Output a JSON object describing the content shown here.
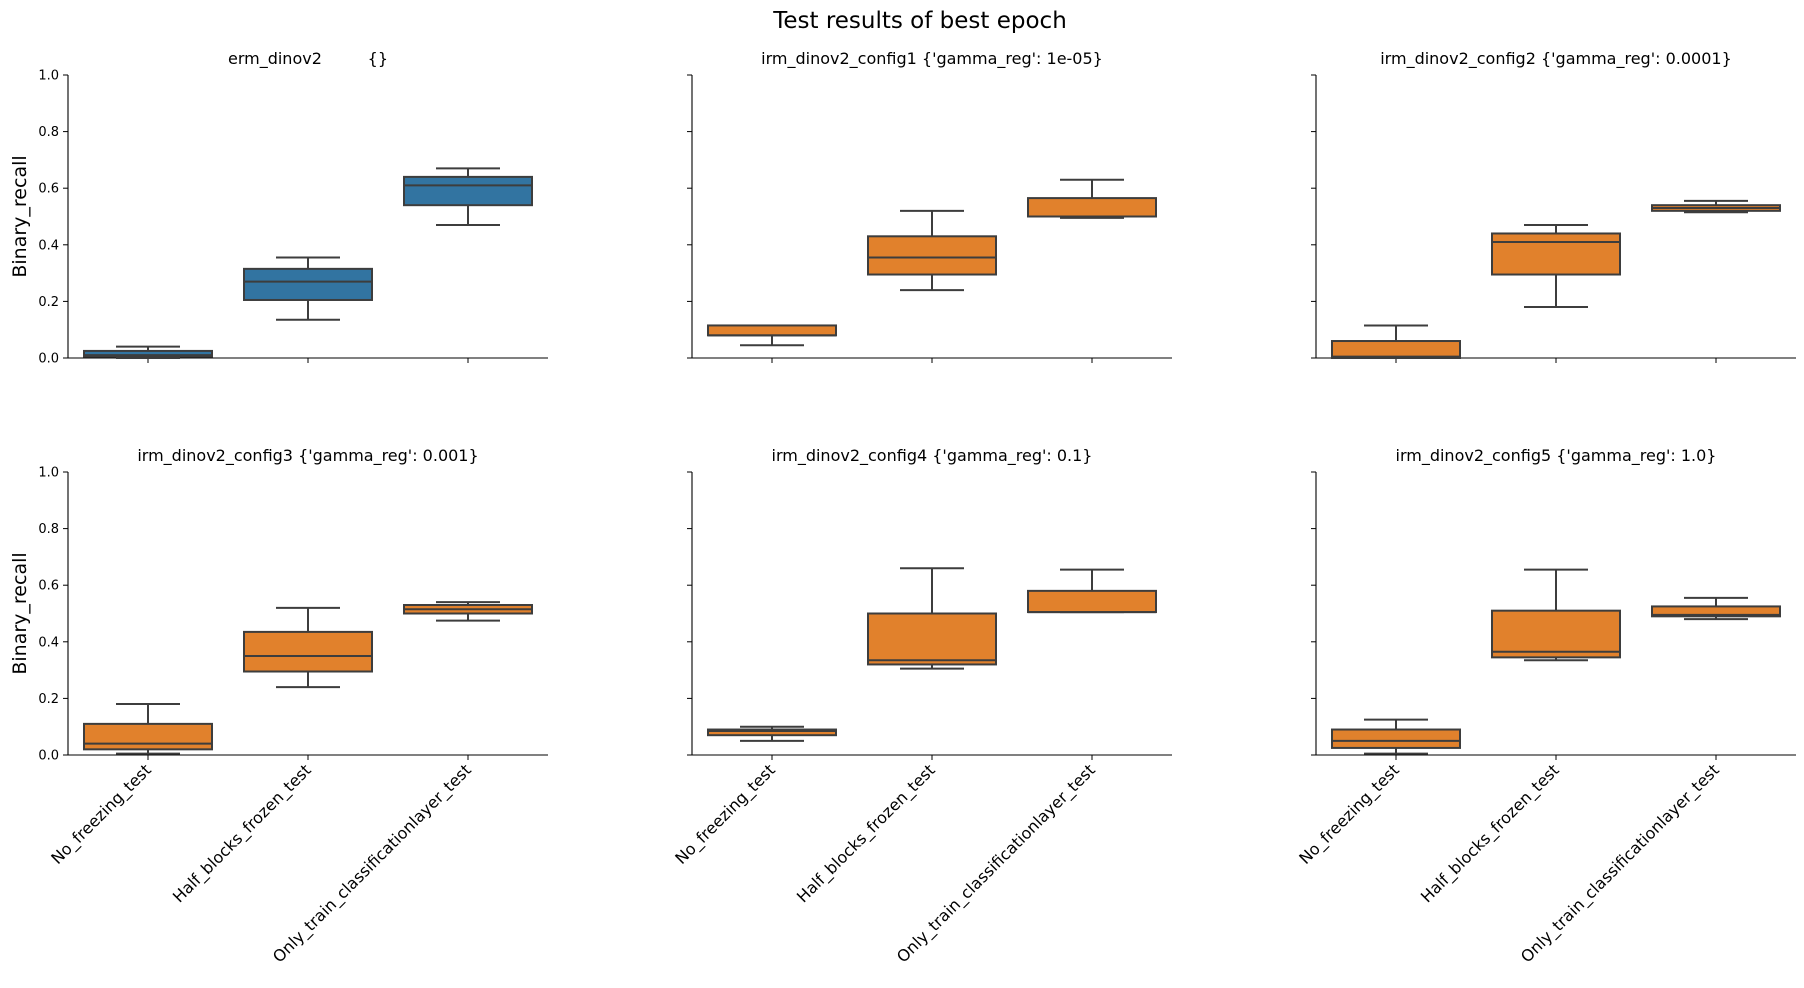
{
  "chart_data": {
    "type": "box",
    "title": "Test results of best epoch",
    "ylabel": "Binary_recall",
    "ylim": [
      0,
      1
    ],
    "yticks": [
      "0.0",
      "0.2",
      "0.4",
      "0.6",
      "0.8",
      "1.0"
    ],
    "categories": [
      "No_freezing_test",
      "Half_blocks_frozen_test",
      "Only_train_classificationlayer_test"
    ],
    "colors": {
      "erm": "#3274a1",
      "irm": "#e1812c"
    },
    "panels": [
      {
        "title": "erm_dinov2         {}",
        "color_key": "erm",
        "boxes": [
          {
            "whislo": 0.0,
            "q1": 0.005,
            "med": 0.01,
            "q3": 0.025,
            "whishi": 0.04
          },
          {
            "whislo": 0.135,
            "q1": 0.205,
            "med": 0.27,
            "q3": 0.315,
            "whishi": 0.355
          },
          {
            "whislo": 0.47,
            "q1": 0.54,
            "med": 0.61,
            "q3": 0.64,
            "whishi": 0.67
          }
        ]
      },
      {
        "title": "irm_dinov2_config1 {'gamma_reg': 1e-05}",
        "color_key": "irm",
        "boxes": [
          {
            "whislo": 0.045,
            "q1": 0.08,
            "med": 0.08,
            "q3": 0.115,
            "whishi": 0.115
          },
          {
            "whislo": 0.24,
            "q1": 0.295,
            "med": 0.355,
            "q3": 0.43,
            "whishi": 0.52
          },
          {
            "whislo": 0.495,
            "q1": 0.5,
            "med": 0.5,
            "q3": 0.565,
            "whishi": 0.63
          }
        ]
      },
      {
        "title": "irm_dinov2_config2 {'gamma_reg': 0.0001}",
        "color_key": "irm",
        "boxes": [
          {
            "whislo": 0.0,
            "q1": 0.0,
            "med": 0.005,
            "q3": 0.06,
            "whishi": 0.115
          },
          {
            "whislo": 0.18,
            "q1": 0.295,
            "med": 0.41,
            "q3": 0.44,
            "whishi": 0.47
          },
          {
            "whislo": 0.515,
            "q1": 0.52,
            "med": 0.53,
            "q3": 0.54,
            "whishi": 0.555
          }
        ]
      },
      {
        "title": "irm_dinov2_config3 {'gamma_reg': 0.001}",
        "color_key": "irm",
        "boxes": [
          {
            "whislo": 0.005,
            "q1": 0.02,
            "med": 0.04,
            "q3": 0.11,
            "whishi": 0.18
          },
          {
            "whislo": 0.24,
            "q1": 0.295,
            "med": 0.35,
            "q3": 0.435,
            "whishi": 0.52
          },
          {
            "whislo": 0.475,
            "q1": 0.5,
            "med": 0.515,
            "q3": 0.53,
            "whishi": 0.54
          }
        ]
      },
      {
        "title": "irm_dinov2_config4 {'gamma_reg': 0.1}",
        "color_key": "irm",
        "boxes": [
          {
            "whislo": 0.05,
            "q1": 0.07,
            "med": 0.085,
            "q3": 0.09,
            "whishi": 0.1
          },
          {
            "whislo": 0.305,
            "q1": 0.32,
            "med": 0.335,
            "q3": 0.5,
            "whishi": 0.66
          },
          {
            "whislo": 0.505,
            "q1": 0.505,
            "med": 0.505,
            "q3": 0.58,
            "whishi": 0.655
          }
        ]
      },
      {
        "title": "irm_dinov2_config5 {'gamma_reg': 1.0}",
        "color_key": "irm",
        "boxes": [
          {
            "whislo": 0.005,
            "q1": 0.025,
            "med": 0.05,
            "q3": 0.09,
            "whishi": 0.125
          },
          {
            "whislo": 0.335,
            "q1": 0.345,
            "med": 0.365,
            "q3": 0.51,
            "whishi": 0.655
          },
          {
            "whislo": 0.48,
            "q1": 0.49,
            "med": 0.495,
            "q3": 0.525,
            "whishi": 0.555
          }
        ]
      }
    ]
  }
}
